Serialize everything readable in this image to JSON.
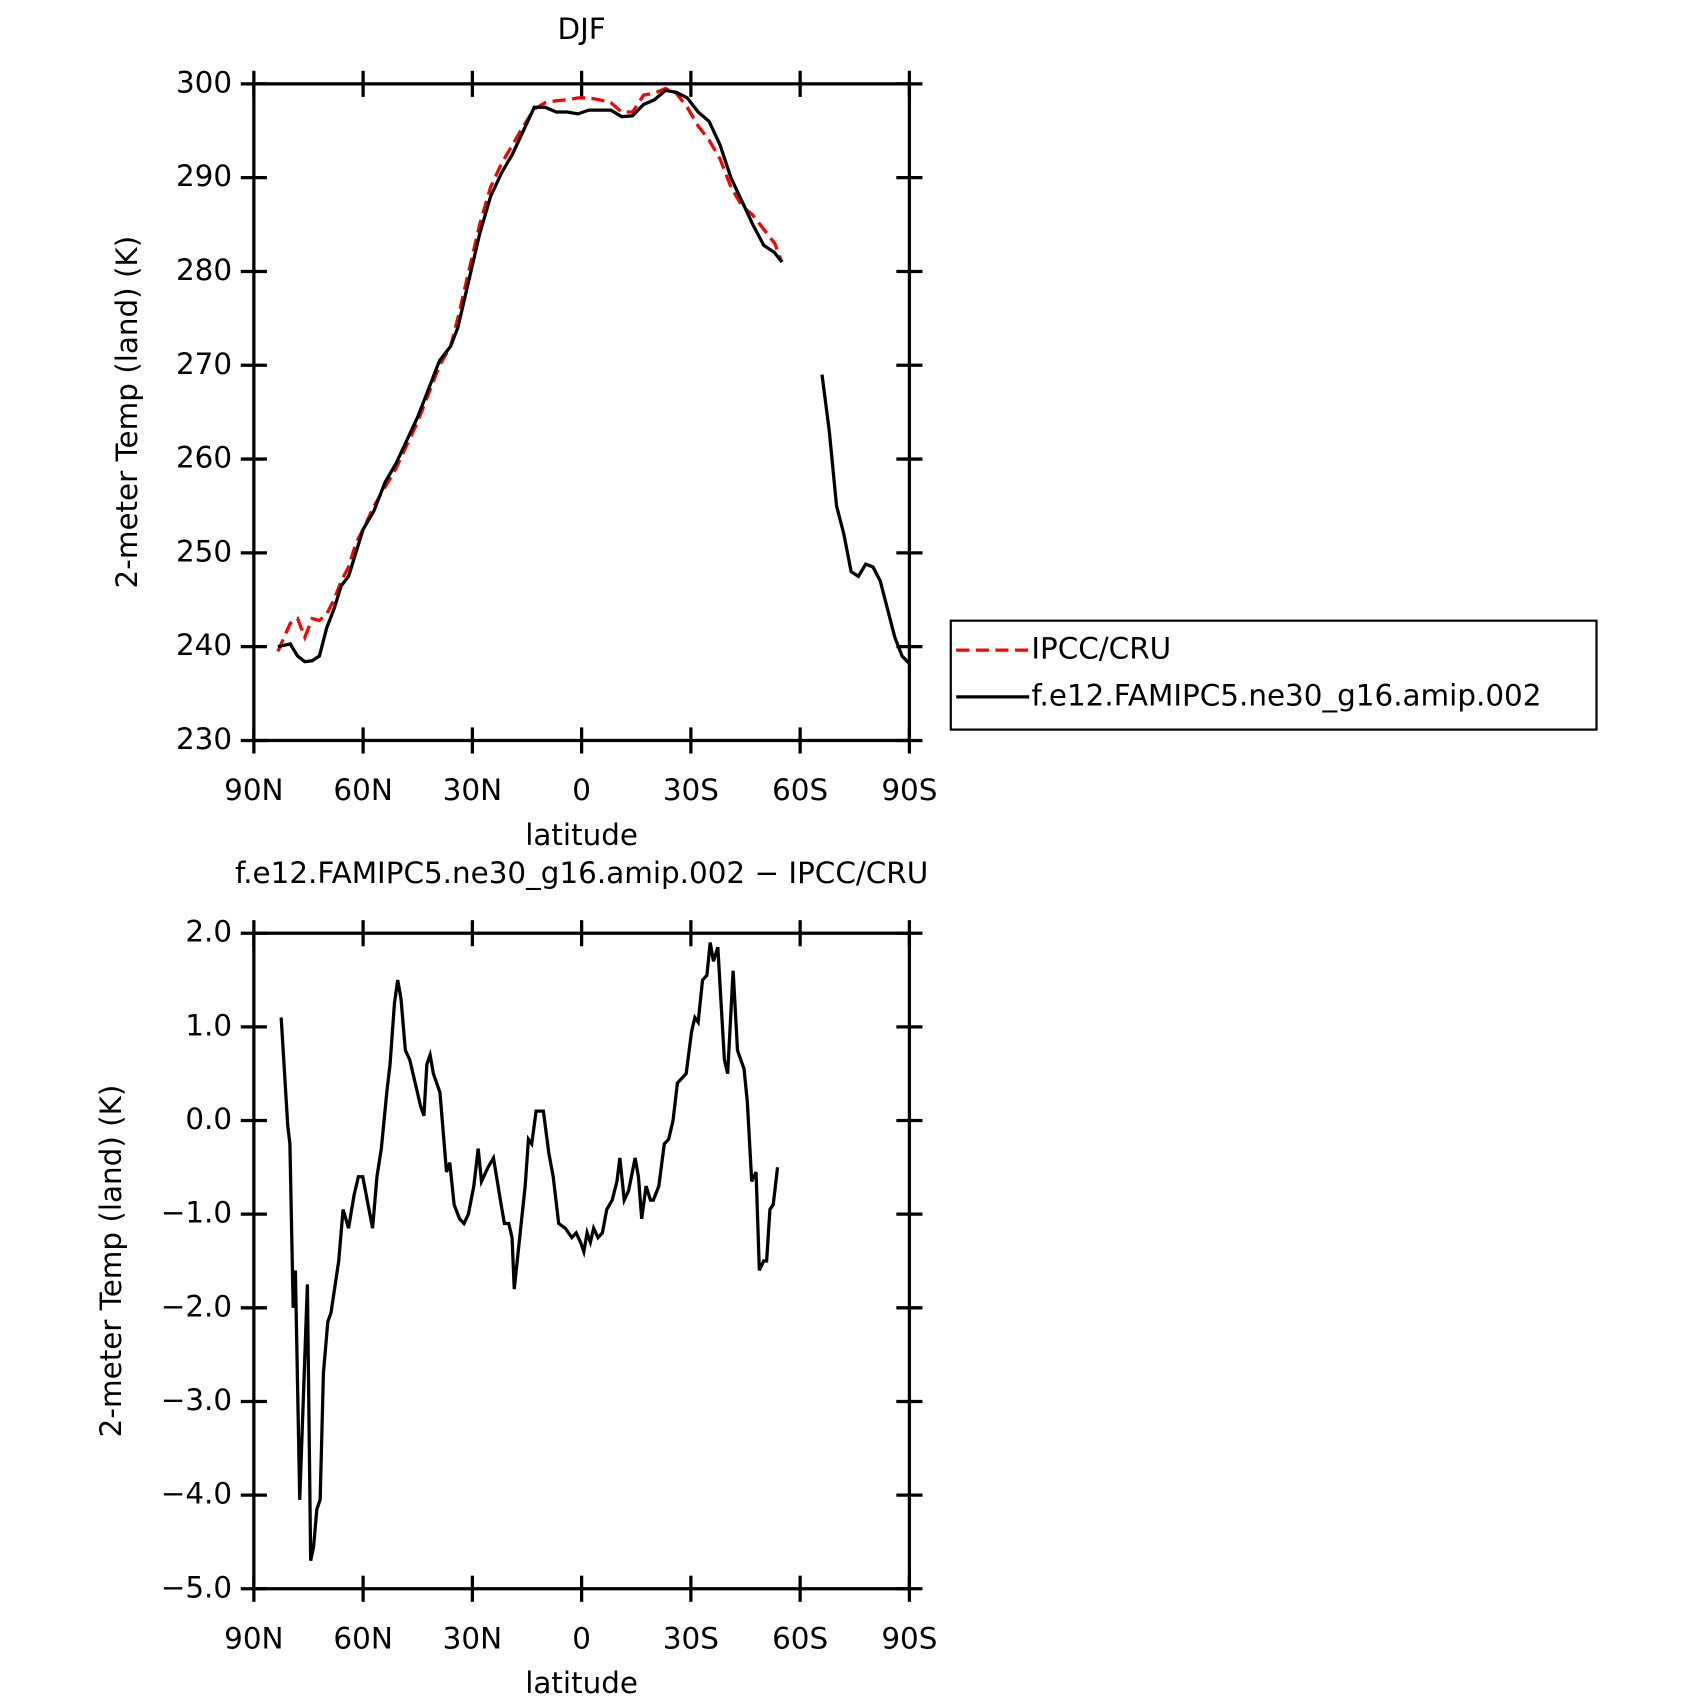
{
  "chart_data": [
    {
      "type": "line",
      "title": "DJF",
      "xlabel": "latitude",
      "ylabel": "2-meter Temp (land) (K)",
      "xlim": [
        90,
        -90
      ],
      "xticks": [
        {
          "value": 90,
          "label": "90N"
        },
        {
          "value": 60,
          "label": "60N"
        },
        {
          "value": 30,
          "label": "30N"
        },
        0,
        {
          "value": -30,
          "label": "30S"
        },
        {
          "value": -60,
          "label": "60S"
        },
        {
          "value": -90,
          "label": "90S"
        }
      ],
      "ylim": [
        230,
        300
      ],
      "yticks": [
        230,
        240,
        250,
        260,
        270,
        280,
        290,
        300
      ],
      "legend": "right",
      "x": [
        83.4,
        80,
        78,
        76,
        74,
        72,
        70,
        68,
        66,
        64,
        62,
        60,
        57,
        54,
        51,
        48,
        45,
        42,
        39,
        36,
        34,
        31,
        28,
        25,
        22,
        19,
        16,
        13,
        10,
        7,
        4,
        1,
        -2,
        -5,
        -8,
        -11,
        -14,
        -17,
        -20,
        -23,
        -26,
        -29,
        -32,
        -35,
        -38,
        -41,
        -44,
        -47,
        -50,
        -53,
        -55,
        -60,
        -66,
        -68,
        -70,
        -72,
        -74,
        -76,
        -78,
        -80,
        -82,
        -84,
        -86,
        -88,
        -90
      ],
      "series": [
        {
          "name": "IPCC/CRU",
          "color": "#ff0000",
          "dashed": true,
          "values": [
            239.5,
            242.5,
            243,
            241,
            243,
            242.8,
            243.5,
            245,
            247,
            248.5,
            251,
            252.5,
            255,
            257,
            259,
            261.5,
            264,
            267,
            270,
            272,
            275,
            280,
            285,
            289,
            291.5,
            293.5,
            295.5,
            297.3,
            298,
            298.2,
            298.3,
            298.5,
            298.5,
            298.3,
            298,
            297,
            297,
            298.8,
            299,
            299.5,
            299,
            297.5,
            295.5,
            294,
            292,
            289,
            287,
            286,
            284.5,
            283,
            281,
            null,
            null,
            null,
            null,
            null,
            null,
            null,
            null,
            null,
            null,
            null,
            null,
            null,
            null
          ]
        },
        {
          "name": "f.e12.FAMIPC5.ne30_g16.amip.002",
          "color": "#000000",
          "dashed": false,
          "values": [
            240,
            240.3,
            239,
            238.4,
            238.5,
            239,
            242,
            244,
            246.5,
            247.5,
            250,
            252.5,
            254.5,
            257.5,
            259.5,
            262,
            264.5,
            267.5,
            270.5,
            272,
            274,
            279,
            284,
            288,
            290.5,
            292.5,
            295,
            297.5,
            297.5,
            297,
            297,
            296.8,
            297.2,
            297.2,
            297.2,
            296.5,
            296.6,
            297.8,
            298.3,
            299.3,
            299.1,
            298.5,
            297,
            296,
            293.5,
            290,
            287.5,
            285,
            282.8,
            282,
            281,
            null,
            269,
            263,
            255,
            252,
            248,
            247.5,
            248.8,
            248.5,
            247,
            244,
            241,
            239,
            238.2
          ]
        }
      ]
    },
    {
      "type": "line",
      "title": "f.e12.FAMIPC5.ne30_g16.amip.002 − IPCC/CRU",
      "xlabel": "latitude",
      "ylabel": "2-meter Temp (land) (K)",
      "xlim": [
        90,
        -90
      ],
      "xticks": [
        {
          "value": 90,
          "label": "90N"
        },
        {
          "value": 60,
          "label": "60N"
        },
        {
          "value": 30,
          "label": "30N"
        },
        0,
        {
          "value": -30,
          "label": "30S"
        },
        {
          "value": -60,
          "label": "60S"
        },
        {
          "value": -90,
          "label": "90S"
        }
      ],
      "ylim": [
        -5,
        2
      ],
      "yticks": [
        {
          "value": -5,
          "label": "−5.0"
        },
        {
          "value": -4,
          "label": "−4.0"
        },
        {
          "value": -3,
          "label": "−3.0"
        },
        {
          "value": -2,
          "label": "−2.0"
        },
        {
          "value": -1,
          "label": "−1.0"
        },
        {
          "value": 0,
          "label": "0.0"
        },
        {
          "value": 1,
          "label": "1.0"
        },
        {
          "value": 2,
          "label": "2.0"
        }
      ],
      "x": [
        82.5,
        80.7,
        80.1,
        79.2,
        78.6,
        77.4,
        75.3,
        74.4,
        73.6,
        72.7,
        71.8,
        70.9,
        69.7,
        68.8,
        66.7,
        65.5,
        64,
        62.5,
        61.3,
        60.1,
        57.4,
        56.2,
        55,
        53.5,
        52.6,
        51.4,
        50.5,
        49.6,
        48.4,
        47.2,
        45.7,
        44.2,
        43.3,
        42.5,
        41.6,
        40.7,
        38.9,
        37.1,
        36.2,
        35,
        33.5,
        32.3,
        31.1,
        29.6,
        28.4,
        27.5,
        25.7,
        24.2,
        22.1,
        21.2,
        20,
        19.1,
        18.5,
        17,
        15.5,
        14.6,
        13.7,
        12.5,
        11.3,
        10.5,
        9,
        7.8,
        6.3,
        4.5,
        2.7,
        1.5,
        0.3,
        -0.6,
        -1.5,
        -2.4,
        -3.3,
        -4.5,
        -5.7,
        -6.9,
        -8.4,
        -9.7,
        -10.5,
        -11.7,
        -12.9,
        -14.7,
        -15.6,
        -16.5,
        -17.7,
        -18.9,
        -19.7,
        -21.2,
        -22.7,
        -23.9,
        -25.1,
        -26.3,
        -27.5,
        -28.7,
        -30.2,
        -31.1,
        -32,
        -33.2,
        -34.4,
        -35.3,
        -36.2,
        -37.4,
        -39.2,
        -40.1,
        -41.6,
        -42.8,
        -44.6,
        -45.5,
        -46.7,
        -47.9,
        -48.8,
        -50,
        -50.8,
        -51.7,
        -52.6,
        -53.8
      ],
      "series": [
        {
          "name": null,
          "color": "#000000",
          "dashed": false,
          "values": [
            1.1,
            -0.05,
            -0.25,
            -2,
            -1.6,
            -4.05,
            -1.75,
            -4.7,
            -4.55,
            -4.15,
            -4.05,
            -2.7,
            -2.15,
            -2.05,
            -1.5,
            -0.95,
            -1.15,
            -0.8,
            -0.6,
            -0.6,
            -1.15,
            -0.6,
            -0.3,
            0.3,
            0.6,
            1.25,
            1.5,
            1.3,
            0.75,
            0.65,
            0.4,
            0.15,
            0.05,
            0.6,
            0.7,
            0.5,
            0.3,
            -0.55,
            -0.45,
            -0.9,
            -1.05,
            -1.1,
            -1,
            -0.7,
            -0.3,
            -0.65,
            -0.5,
            -0.4,
            -0.9,
            -1.1,
            -1.1,
            -1.25,
            -1.8,
            -1.25,
            -0.7,
            -0.2,
            -0.25,
            0.1,
            0.1,
            0.1,
            -0.35,
            -0.6,
            -1.1,
            -1.15,
            -1.25,
            -1.2,
            -1.3,
            -1.4,
            -1.2,
            -1.3,
            -1.15,
            -1.25,
            -1.2,
            -0.95,
            -0.85,
            -0.65,
            -0.4,
            -0.85,
            -0.75,
            -0.4,
            -0.6,
            -1.05,
            -0.7,
            -0.85,
            -0.85,
            -0.7,
            -0.25,
            -0.2,
            0,
            0.4,
            0.45,
            0.5,
            0.95,
            1.1,
            1.05,
            1.5,
            1.55,
            1.9,
            1.7,
            1.85,
            0.65,
            0.5,
            1.6,
            0.75,
            0.55,
            0.2,
            -0.65,
            -0.55,
            -1.6,
            -1.5,
            -1.5,
            -0.95,
            -0.9,
            -0.5
          ]
        }
      ]
    }
  ]
}
